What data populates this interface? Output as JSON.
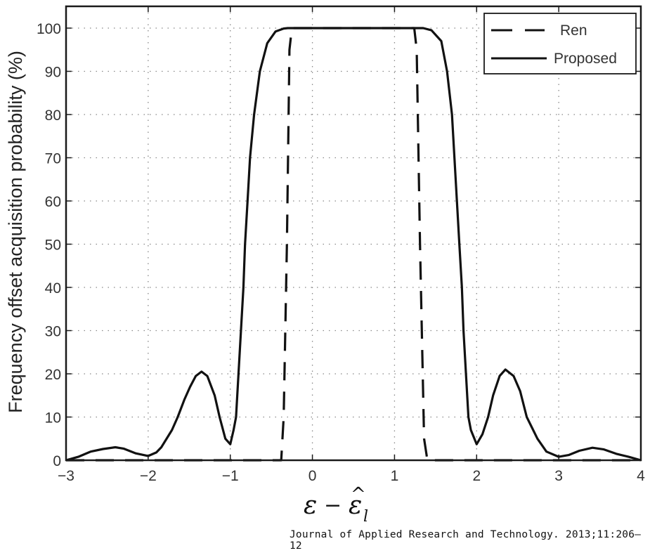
{
  "chart_data": {
    "type": "line",
    "title": "",
    "xlabel": "ε − ε̂_l",
    "ylabel": "Frequency offset acquisition probability (%)",
    "xlim": [
      -3,
      4
    ],
    "ylim": [
      0,
      105
    ],
    "xticks": [
      -3,
      -2,
      -1,
      0,
      1,
      2,
      3,
      4
    ],
    "xtick_labels": [
      "−3",
      "−2",
      "−1",
      "0",
      "1",
      "2",
      "3",
      "4"
    ],
    "yticks": [
      0,
      10,
      20,
      30,
      40,
      50,
      60,
      70,
      80,
      90,
      100
    ],
    "ytick_labels": [
      "0",
      "10",
      "20",
      "30",
      "40",
      "50",
      "60",
      "70",
      "80",
      "90",
      "100"
    ],
    "grid": true,
    "legend_position": "upper right",
    "series": [
      {
        "name": "Ren",
        "style": "dashed",
        "x": [
          -3.0,
          -0.38,
          -0.35,
          -0.31,
          -0.28,
          -0.25,
          1.24,
          1.27,
          1.31,
          1.36,
          1.4,
          4.0
        ],
        "y": [
          0,
          0,
          10,
          50,
          95,
          100,
          100,
          95,
          50,
          5,
          0,
          0
        ]
      },
      {
        "name": "Proposed",
        "style": "solid",
        "x": [
          -3.0,
          -2.85,
          -2.7,
          -2.55,
          -2.4,
          -2.3,
          -2.15,
          -2.0,
          -1.9,
          -1.84,
          -1.71,
          -1.64,
          -1.56,
          -1.49,
          -1.42,
          -1.35,
          -1.28,
          -1.19,
          -1.13,
          -1.06,
          -1.0,
          -0.96,
          -0.93,
          -0.9,
          -0.87,
          -0.84,
          -0.82,
          -0.79,
          -0.76,
          -0.71,
          -0.64,
          -0.55,
          -0.45,
          -0.35,
          -0.3,
          0.0,
          1.0,
          1.35,
          1.45,
          1.57,
          1.64,
          1.7,
          1.73,
          1.76,
          1.79,
          1.82,
          1.84,
          1.87,
          1.9,
          1.93,
          2.0,
          2.07,
          2.14,
          2.2,
          2.28,
          2.35,
          2.45,
          2.53,
          2.61,
          2.74,
          2.85,
          3.0,
          3.12,
          3.25,
          3.41,
          3.55,
          3.7,
          3.85,
          4.0
        ],
        "y": [
          0,
          0.8,
          2.0,
          2.6,
          3.0,
          2.7,
          1.6,
          1.0,
          1.8,
          3.0,
          7.0,
          10.0,
          14.0,
          17.0,
          19.5,
          20.5,
          19.5,
          15.0,
          10.0,
          5.0,
          3.7,
          7.0,
          10.0,
          20.0,
          30.0,
          40.0,
          50.0,
          60.0,
          70.0,
          80.0,
          90.0,
          96.5,
          99.2,
          99.9,
          100,
          100,
          100,
          100,
          99.5,
          97.0,
          90.0,
          80.0,
          70.0,
          60.0,
          50.0,
          40.0,
          30.0,
          20.0,
          10.0,
          7.0,
          3.7,
          6.0,
          10.0,
          15.0,
          19.5,
          21.0,
          19.5,
          16.0,
          10.0,
          5.0,
          2.0,
          0.8,
          1.2,
          2.2,
          2.9,
          2.5,
          1.5,
          0.8,
          0
        ]
      }
    ],
    "annotations": []
  },
  "legend": {
    "items": [
      {
        "label": "Ren",
        "style": "dashed"
      },
      {
        "label": "Proposed",
        "style": "solid"
      }
    ]
  },
  "citation": "Journal of Applied Research and Technology. 2013;11:206–12"
}
